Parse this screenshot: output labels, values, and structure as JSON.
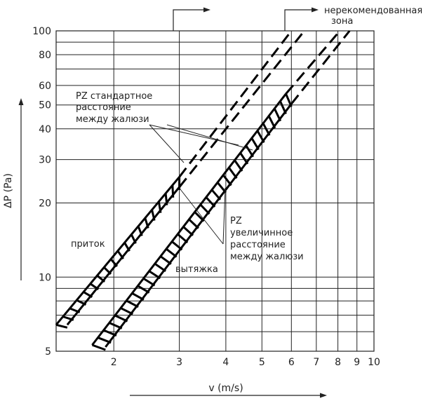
{
  "chart_data": {
    "type": "line",
    "xscale": "log",
    "yscale": "log",
    "xlim": [
      1.4,
      10
    ],
    "ylim": [
      5,
      100
    ],
    "xlabel": "v (m/s)",
    "ylabel": "ΔP (Pa)",
    "xticks": [
      2,
      3,
      4,
      5,
      6,
      7,
      8,
      9,
      10
    ],
    "xtick_labels": [
      "2",
      "3",
      "4",
      "5",
      "6",
      "7",
      "8",
      "9",
      "10"
    ],
    "yticks": [
      5,
      10,
      20,
      30,
      40,
      50,
      60,
      80,
      100
    ],
    "ytick_labels": [
      "5",
      "10",
      "20",
      "30",
      "40",
      "50",
      "60",
      "80",
      "100"
    ],
    "ygrid": [
      5,
      6,
      7,
      8,
      9,
      10,
      20,
      30,
      40,
      50,
      60,
      70,
      80,
      90,
      100
    ],
    "series": [
      {
        "name": "приток",
        "role": "upper-band-left",
        "solid": [
          [
            1.4,
            6.4
          ],
          [
            3.0,
            25.5
          ]
        ],
        "dashed": [
          [
            3.0,
            25.5
          ],
          [
            6.0,
            100
          ]
        ]
      },
      {
        "name": "приток",
        "role": "upper-band-right",
        "solid": [
          [
            1.5,
            6.4
          ],
          [
            3.0,
            23.2
          ]
        ],
        "dashed": [
          [
            3.0,
            23.2
          ],
          [
            6.5,
            100
          ]
        ]
      },
      {
        "name": "вытяжка",
        "role": "lower-band-left",
        "solid": [
          [
            1.75,
            5.3
          ],
          [
            5.8,
            55.5
          ]
        ],
        "dashed": [
          [
            5.8,
            55.5
          ],
          [
            8.1,
            100
          ]
        ]
      },
      {
        "name": "вытяжка",
        "role": "lower-band-right",
        "solid": [
          [
            1.9,
            5.2
          ],
          [
            6.0,
            50.5
          ]
        ],
        "dashed": [
          [
            6.0,
            50.5
          ],
          [
            8.6,
            100
          ]
        ]
      }
    ],
    "annotations": {
      "pz_standard": [
        "PZ стандартное",
        "расстояние",
        "между жалюзи"
      ],
      "pz_increased": [
        "PZ",
        "увеличинное",
        "расстояние",
        "между жалюзи"
      ],
      "supply": "приток",
      "exhaust": "вытяжка",
      "not_recommended": [
        "нерекомендованная",
        "зона"
      ]
    }
  }
}
